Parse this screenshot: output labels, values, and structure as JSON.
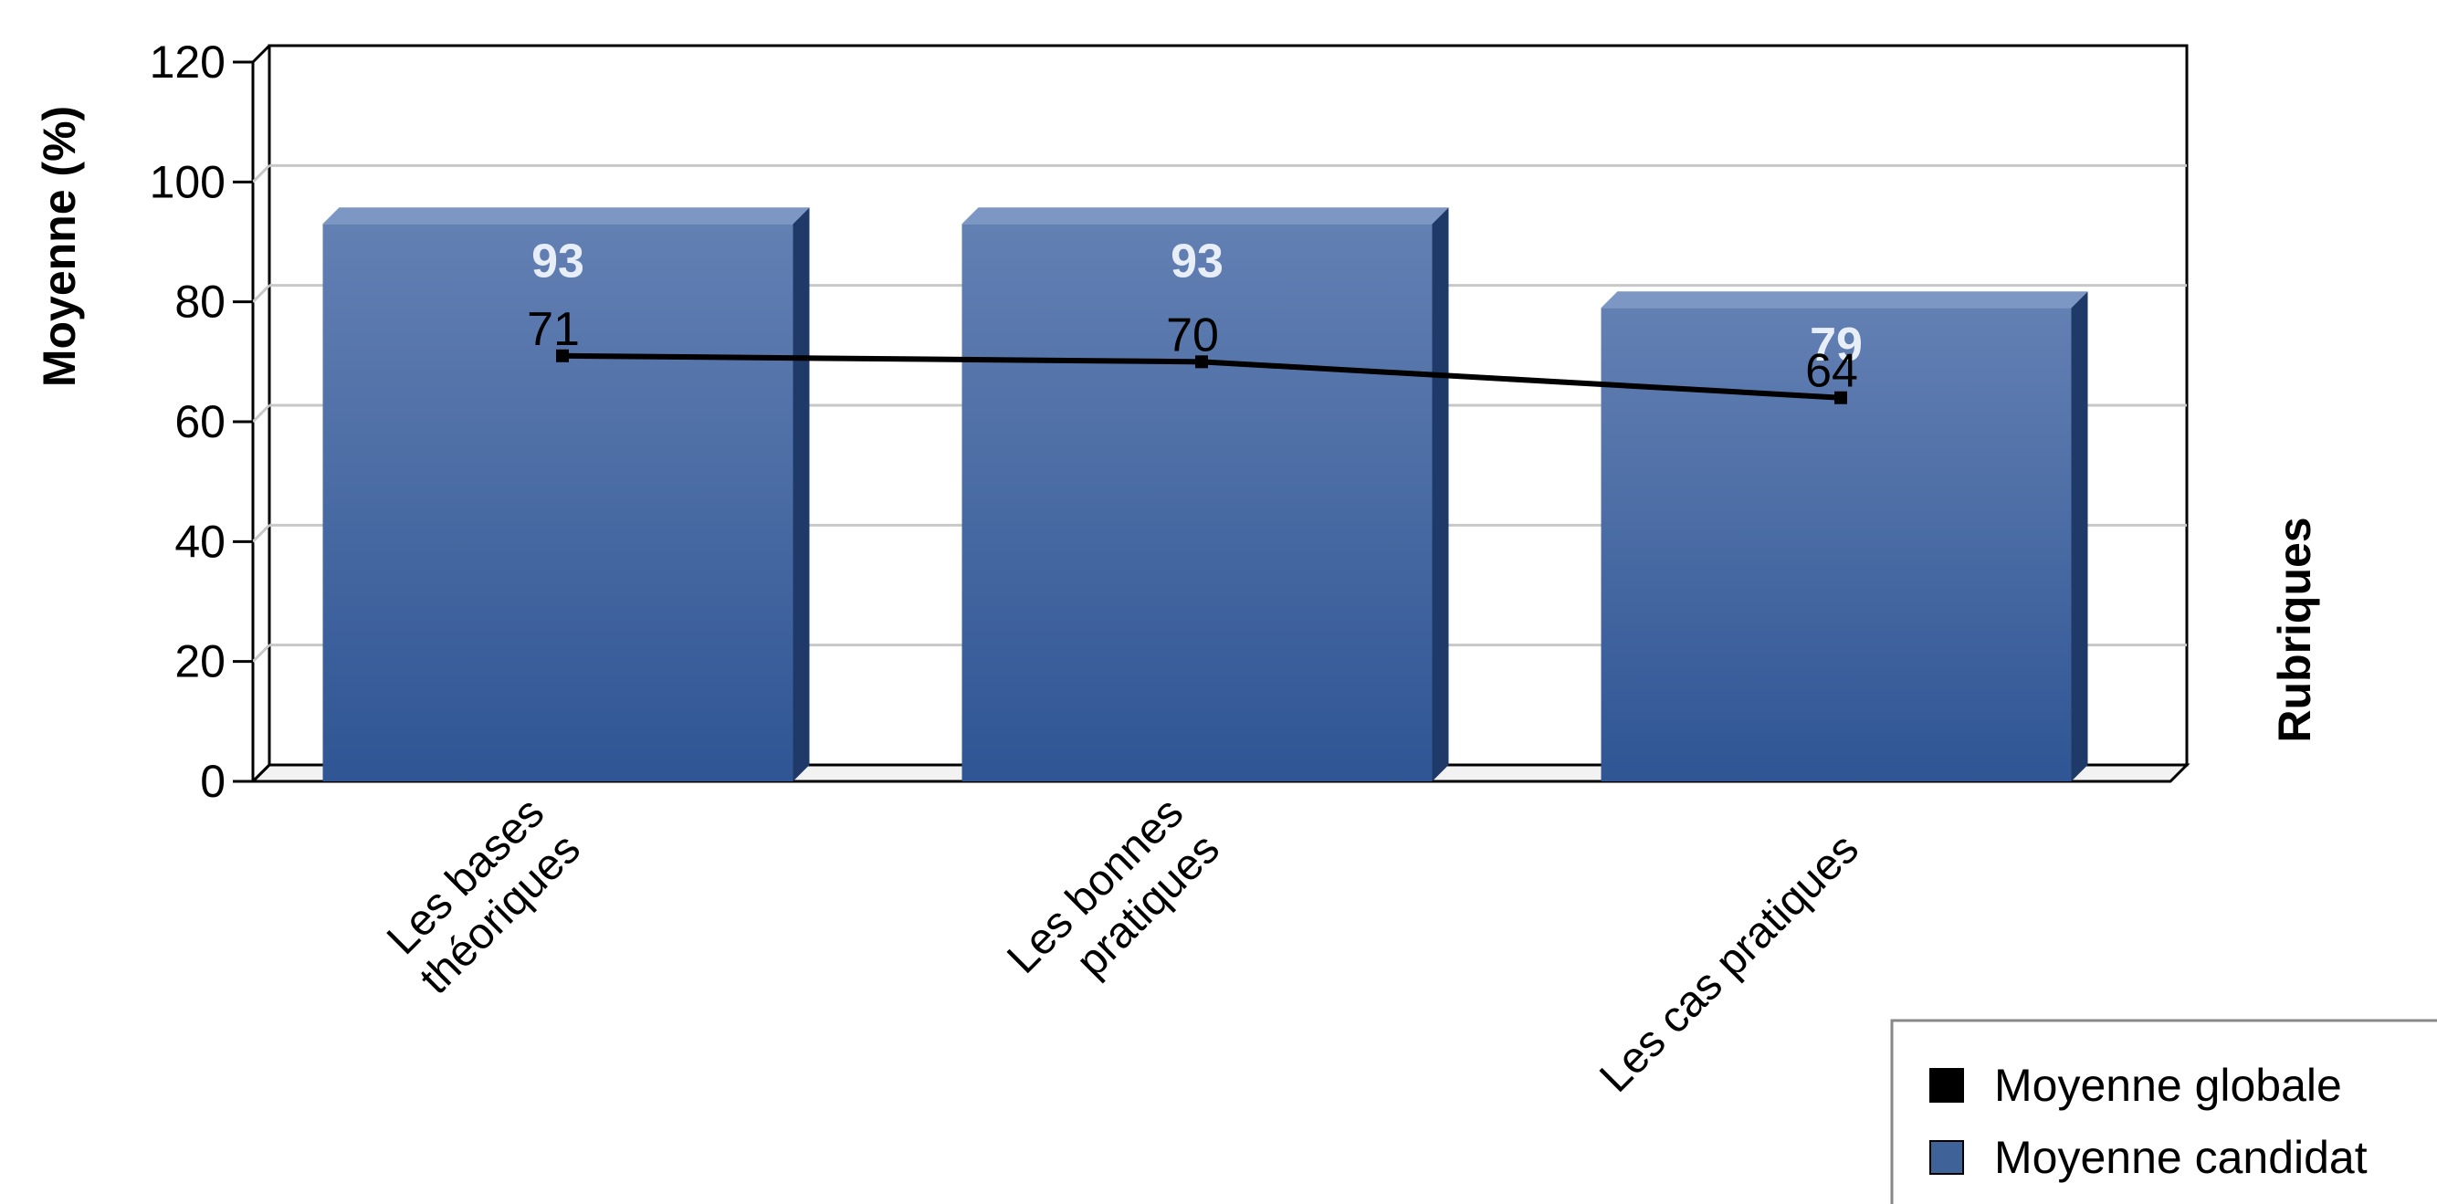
{
  "chart_data": {
    "type": "bar",
    "categories": [
      "Les bases théoriques",
      "Les bonnes pratiques",
      "Les cas pratiques"
    ],
    "category_lines": [
      [
        "Les bases",
        "théoriques"
      ],
      [
        "Les bonnes",
        "pratiques"
      ],
      [
        "Les cas pratiques"
      ]
    ],
    "series": [
      {
        "name": "Moyenne candidat",
        "kind": "bar",
        "values": [
          93,
          93,
          79
        ],
        "color": "#3f6299"
      },
      {
        "name": "Moyenne globale",
        "kind": "line",
        "values": [
          71,
          70,
          64
        ],
        "color": "#000000"
      }
    ],
    "ylabel": "Moyenne (%)",
    "xlabel": "Rubriques",
    "ylim": [
      0,
      120
    ],
    "yticks": [
      0,
      20,
      40,
      60,
      80,
      100,
      120
    ],
    "grid": true,
    "legend_position": "bottom-right",
    "legend": [
      "Moyenne globale",
      "Moyenne candidat"
    ]
  }
}
